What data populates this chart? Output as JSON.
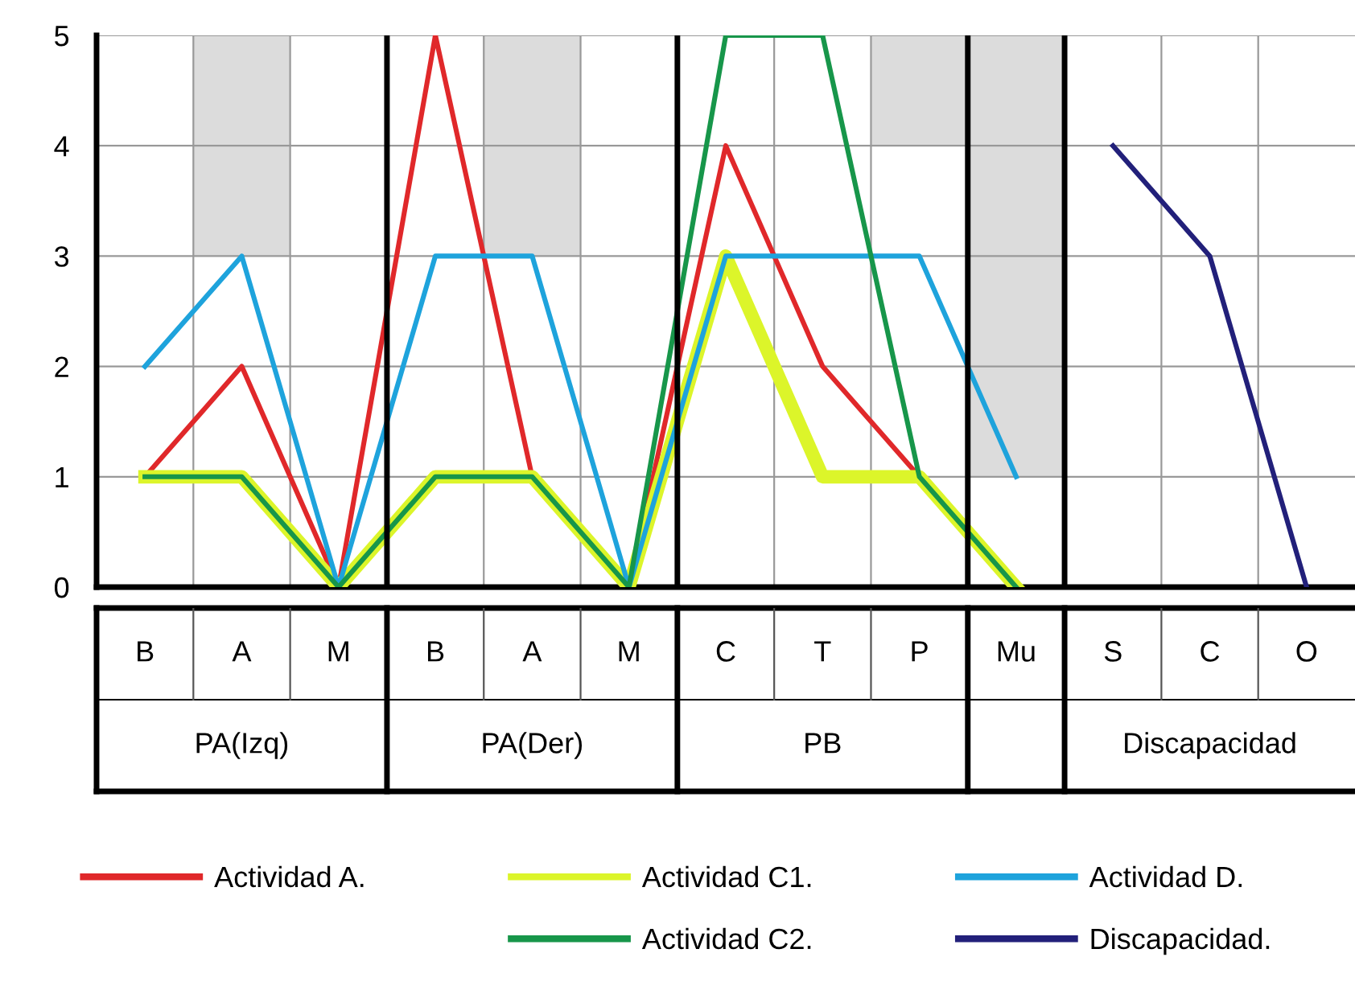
{
  "chart_data": {
    "type": "line",
    "categories": [
      "B",
      "A",
      "M",
      "B",
      "A",
      "M",
      "C",
      "T",
      "P",
      "Mu",
      "S",
      "C",
      "O"
    ],
    "ylim": [
      0,
      5
    ],
    "yticks": [
      0,
      1,
      2,
      3,
      4,
      5
    ],
    "grid": true,
    "legend": "bottom",
    "line_style": "solid",
    "marker": "none",
    "series": [
      {
        "type": "bar",
        "color": "#dcdcdc",
        "values": [
          null,
          2,
          null,
          null,
          2,
          null,
          null,
          null,
          1,
          4,
          null,
          null,
          null
        ],
        "base": [
          null,
          3,
          null,
          null,
          3,
          null,
          null,
          null,
          4,
          1,
          null,
          null,
          null
        ]
      },
      {
        "name": "Actividad A.",
        "color": "#e0282a",
        "values": [
          1,
          2,
          0,
          5,
          1,
          0,
          4,
          2,
          1,
          0,
          null,
          null,
          null
        ]
      },
      {
        "name": "Actividad C1.",
        "color": "#dcf52a",
        "values": [
          1,
          1,
          0,
          1,
          1,
          0,
          3,
          1,
          1,
          0,
          null,
          null,
          null
        ]
      },
      {
        "name": "Actividad D.",
        "color": "#1ea3dc",
        "values": [
          2,
          3,
          0,
          3,
          3,
          0,
          3,
          3,
          3,
          1,
          null,
          null,
          null
        ]
      },
      {
        "name": "Actividad C2.",
        "color": "#17964a",
        "values": [
          1,
          1,
          0,
          1,
          1,
          0,
          5,
          5,
          1,
          0,
          null,
          null,
          null
        ]
      },
      {
        "name": "Discapacidad.",
        "color": "#22207a",
        "values": [
          null,
          null,
          null,
          null,
          null,
          null,
          null,
          null,
          null,
          null,
          4,
          3,
          0
        ]
      }
    ],
    "annotations": [
      "PA(Izq)",
      "PA(Der)",
      "PB",
      "Discapacidad"
    ]
  }
}
